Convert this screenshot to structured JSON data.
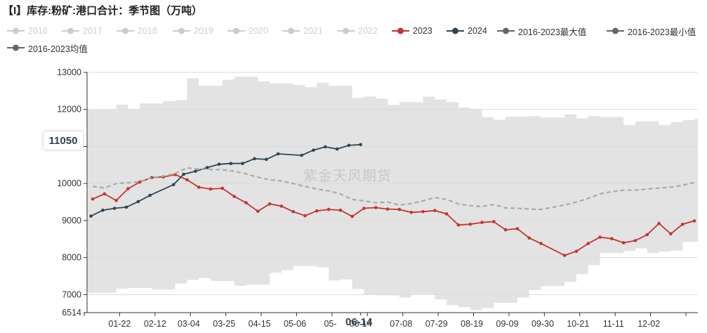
{
  "title": "【I】库存:粉矿:港口合计：季节图（万吨）",
  "watermark": "紫金天风期货",
  "pointer": {
    "y_value": "11050",
    "x_value": "06-14"
  },
  "legend": [
    {
      "label": "2016",
      "active": false,
      "color": "#cccccc"
    },
    {
      "label": "2017",
      "active": false,
      "color": "#cccccc"
    },
    {
      "label": "2018",
      "active": false,
      "color": "#cccccc"
    },
    {
      "label": "2019",
      "active": false,
      "color": "#cccccc"
    },
    {
      "label": "2020",
      "active": false,
      "color": "#cccccc"
    },
    {
      "label": "2021",
      "active": false,
      "color": "#cccccc"
    },
    {
      "label": "2022",
      "active": false,
      "color": "#cccccc"
    },
    {
      "label": "2023",
      "active": true,
      "color": "#c23531"
    },
    {
      "label": "2024",
      "active": true,
      "color": "#2f4554"
    },
    {
      "label": "2016-2023最大值",
      "active": true,
      "color": "#666666"
    },
    {
      "label": "2016-2023最小值",
      "active": true,
      "color": "#666666"
    },
    {
      "label": "2016-2023均值",
      "active": true,
      "color": "#666666"
    }
  ],
  "chart_data": {
    "type": "line",
    "title": "【I】库存:粉矿:港口合计：季节图（万吨）",
    "ylim": [
      6514,
      13000
    ],
    "y_ticks": [
      6514,
      7000,
      8000,
      9000,
      10000,
      11000,
      12000,
      13000
    ],
    "x_ticks": [
      "01-22",
      "02-12",
      "03-04",
      "03-25",
      "04-15",
      "05-06",
      "05-",
      "06-14",
      "07-08",
      "07-29",
      "08-19",
      "09-09",
      "09-30",
      "10-21",
      "11-11",
      "12-02"
    ],
    "grid": true,
    "series": [
      {
        "name": "2023",
        "color": "#c23531",
        "values": [
          [
            "01-06",
            9580
          ],
          [
            "01-13",
            9720
          ],
          [
            "01-20",
            9540
          ],
          [
            "01-27",
            9860
          ],
          [
            "02-03",
            10040
          ],
          [
            "02-10",
            10160
          ],
          [
            "02-17",
            10180
          ],
          [
            "02-24",
            10240
          ],
          [
            "03-03",
            10100
          ],
          [
            "03-10",
            9900
          ],
          [
            "03-17",
            9850
          ],
          [
            "03-24",
            9870
          ],
          [
            "03-31",
            9650
          ],
          [
            "04-07",
            9480
          ],
          [
            "04-14",
            9250
          ],
          [
            "04-21",
            9450
          ],
          [
            "04-28",
            9390
          ],
          [
            "05-05",
            9240
          ],
          [
            "05-12",
            9130
          ],
          [
            "05-19",
            9260
          ],
          [
            "05-26",
            9300
          ],
          [
            "06-02",
            9280
          ],
          [
            "06-09",
            9110
          ],
          [
            "06-16",
            9330
          ],
          [
            "06-23",
            9350
          ],
          [
            "06-30",
            9310
          ],
          [
            "07-07",
            9300
          ],
          [
            "07-14",
            9220
          ],
          [
            "07-21",
            9240
          ],
          [
            "07-28",
            9270
          ],
          [
            "08-04",
            9180
          ],
          [
            "08-11",
            8880
          ],
          [
            "08-18",
            8900
          ],
          [
            "08-25",
            8950
          ],
          [
            "09-01",
            8970
          ],
          [
            "09-08",
            8750
          ],
          [
            "09-15",
            8780
          ],
          [
            "09-22",
            8530
          ],
          [
            "09-29",
            8380
          ],
          [
            "10-13",
            8060
          ],
          [
            "10-20",
            8170
          ],
          [
            "10-27",
            8380
          ],
          [
            "11-03",
            8550
          ],
          [
            "11-10",
            8510
          ],
          [
            "11-17",
            8400
          ],
          [
            "11-24",
            8460
          ],
          [
            "12-01",
            8620
          ],
          [
            "12-08",
            8920
          ],
          [
            "12-15",
            8640
          ],
          [
            "12-22",
            8900
          ],
          [
            "12-29",
            8990
          ]
        ]
      },
      {
        "name": "2024",
        "color": "#2f4554",
        "values": [
          [
            "01-05",
            9120
          ],
          [
            "01-12",
            9280
          ],
          [
            "01-19",
            9330
          ],
          [
            "01-26",
            9360
          ],
          [
            "02-02",
            9510
          ],
          [
            "02-09",
            9680
          ],
          [
            "02-23",
            9970
          ],
          [
            "03-01",
            10250
          ],
          [
            "03-08",
            10330
          ],
          [
            "03-15",
            10430
          ],
          [
            "03-22",
            10520
          ],
          [
            "03-29",
            10540
          ],
          [
            "04-05",
            10540
          ],
          [
            "04-12",
            10670
          ],
          [
            "04-19",
            10650
          ],
          [
            "04-26",
            10800
          ],
          [
            "05-10",
            10760
          ],
          [
            "05-17",
            10900
          ],
          [
            "05-24",
            10990
          ],
          [
            "05-31",
            10930
          ],
          [
            "06-07",
            11030
          ],
          [
            "06-14",
            11050
          ]
        ]
      },
      {
        "name": "2016-2023最大值",
        "type": "band-upper",
        "values": [
          [
            "01-06",
            11990
          ],
          [
            "01-20",
            12130
          ],
          [
            "01-27",
            12000
          ],
          [
            "02-03",
            12160
          ],
          [
            "02-17",
            12220
          ],
          [
            "02-24",
            12250
          ],
          [
            "03-03",
            12840
          ],
          [
            "03-10",
            12640
          ],
          [
            "03-24",
            12800
          ],
          [
            "03-31",
            12880
          ],
          [
            "04-14",
            12760
          ],
          [
            "04-21",
            12700
          ],
          [
            "05-05",
            12660
          ],
          [
            "05-12",
            12600
          ],
          [
            "05-19",
            12720
          ],
          [
            "05-26",
            12640
          ],
          [
            "06-09",
            12310
          ],
          [
            "06-16",
            12350
          ],
          [
            "06-23",
            12290
          ],
          [
            "06-30",
            12120
          ],
          [
            "07-07",
            12200
          ],
          [
            "07-21",
            12340
          ],
          [
            "07-28",
            12270
          ],
          [
            "08-04",
            12200
          ],
          [
            "08-11",
            12050
          ],
          [
            "08-18",
            12000
          ],
          [
            "08-25",
            11790
          ],
          [
            "09-01",
            11720
          ],
          [
            "09-08",
            11800
          ],
          [
            "09-22",
            11820
          ],
          [
            "09-29",
            11780
          ],
          [
            "10-13",
            11870
          ],
          [
            "10-20",
            11760
          ],
          [
            "10-27",
            11820
          ],
          [
            "11-03",
            11790
          ],
          [
            "11-17",
            11580
          ],
          [
            "11-24",
            11680
          ],
          [
            "12-08",
            11580
          ],
          [
            "12-15",
            11660
          ],
          [
            "12-22",
            11710
          ],
          [
            "12-29",
            11740
          ]
        ]
      },
      {
        "name": "2016-2023最小值",
        "type": "band-lower",
        "values": [
          [
            "01-06",
            7050
          ],
          [
            "01-20",
            7160
          ],
          [
            "01-27",
            7180
          ],
          [
            "02-10",
            7140
          ],
          [
            "02-24",
            7300
          ],
          [
            "03-03",
            7400
          ],
          [
            "03-10",
            7450
          ],
          [
            "03-17",
            7370
          ],
          [
            "03-31",
            7240
          ],
          [
            "04-07",
            7270
          ],
          [
            "04-21",
            7590
          ],
          [
            "04-28",
            7660
          ],
          [
            "05-05",
            7770
          ],
          [
            "05-19",
            7740
          ],
          [
            "05-26",
            7380
          ],
          [
            "06-02",
            7410
          ],
          [
            "06-09",
            7150
          ],
          [
            "06-16",
            7000
          ],
          [
            "06-23",
            6980
          ],
          [
            "07-07",
            6920
          ],
          [
            "07-14",
            7010
          ],
          [
            "07-28",
            6870
          ],
          [
            "08-04",
            6720
          ],
          [
            "08-11",
            6660
          ],
          [
            "08-18",
            6580
          ],
          [
            "08-25",
            6640
          ],
          [
            "09-01",
            6780
          ],
          [
            "09-15",
            6920
          ],
          [
            "09-22",
            7120
          ],
          [
            "09-29",
            7230
          ],
          [
            "10-13",
            7340
          ],
          [
            "10-20",
            7550
          ],
          [
            "10-27",
            7800
          ],
          [
            "11-03",
            8120
          ],
          [
            "11-17",
            8180
          ],
          [
            "11-24",
            8250
          ],
          [
            "12-01",
            8120
          ],
          [
            "12-08",
            8160
          ],
          [
            "12-15",
            8190
          ],
          [
            "12-22",
            8420
          ],
          [
            "12-29",
            8430
          ]
        ]
      },
      {
        "name": "2016-2023均值",
        "color": "#aaaaaa",
        "dashed": true,
        "values": [
          [
            "01-06",
            9920
          ],
          [
            "01-13",
            9880
          ],
          [
            "01-20",
            10000
          ],
          [
            "01-27",
            10020
          ],
          [
            "02-03",
            10050
          ],
          [
            "02-10",
            10160
          ],
          [
            "02-17",
            10200
          ],
          [
            "02-24",
            10270
          ],
          [
            "03-03",
            10420
          ],
          [
            "03-10",
            10390
          ],
          [
            "03-17",
            10380
          ],
          [
            "03-24",
            10370
          ],
          [
            "03-31",
            10330
          ],
          [
            "04-07",
            10260
          ],
          [
            "04-14",
            10170
          ],
          [
            "04-21",
            10100
          ],
          [
            "04-28",
            10070
          ],
          [
            "05-05",
            10000
          ],
          [
            "05-12",
            9920
          ],
          [
            "05-19",
            9850
          ],
          [
            "05-26",
            9800
          ],
          [
            "06-02",
            9720
          ],
          [
            "06-09",
            9570
          ],
          [
            "06-16",
            9530
          ],
          [
            "06-23",
            9480
          ],
          [
            "06-30",
            9500
          ],
          [
            "07-07",
            9420
          ],
          [
            "07-14",
            9460
          ],
          [
            "07-21",
            9530
          ],
          [
            "07-28",
            9620
          ],
          [
            "08-04",
            9570
          ],
          [
            "08-11",
            9450
          ],
          [
            "08-18",
            9400
          ],
          [
            "08-25",
            9380
          ],
          [
            "09-01",
            9430
          ],
          [
            "09-08",
            9340
          ],
          [
            "09-15",
            9330
          ],
          [
            "09-22",
            9310
          ],
          [
            "09-29",
            9300
          ],
          [
            "10-13",
            9420
          ],
          [
            "10-20",
            9500
          ],
          [
            "10-27",
            9600
          ],
          [
            "11-03",
            9720
          ],
          [
            "11-10",
            9780
          ],
          [
            "11-17",
            9820
          ],
          [
            "11-24",
            9820
          ],
          [
            "12-01",
            9850
          ],
          [
            "12-08",
            9880
          ],
          [
            "12-15",
            9900
          ],
          [
            "12-22",
            9950
          ],
          [
            "12-29",
            10030
          ]
        ]
      }
    ]
  }
}
